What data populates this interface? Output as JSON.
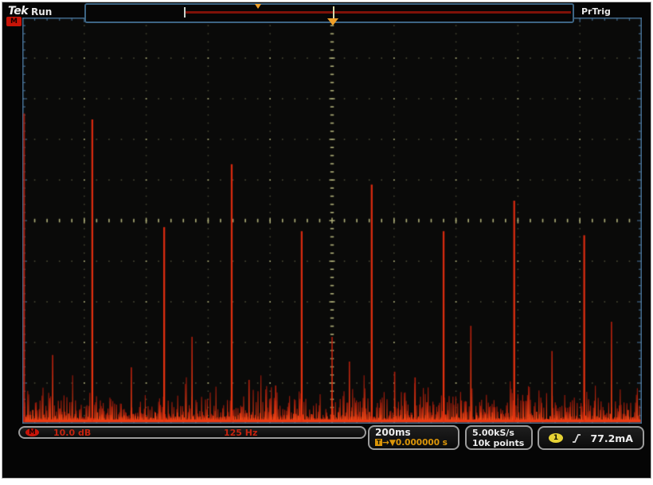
{
  "header": {
    "logo": "Tek",
    "acquisition_status": "Run",
    "trigger_status": "PrTrig"
  },
  "markers": {
    "math_reference_label": "M"
  },
  "icons": {
    "trigger_position": "down-triangle",
    "record_view_trigger": "down-triangle",
    "trigger_slope": "rising-edge",
    "horizontal_trigger_box": "T",
    "arrow_right": "→",
    "down_triangle": "▼"
  },
  "readouts": {
    "math": {
      "badge": "M",
      "vertical_scale": "10.0 dB",
      "horizontal_scale": "125 Hz"
    },
    "horizontal": {
      "scale": "200ms",
      "t_icon": "T",
      "position": "0.000000 s"
    },
    "acquisition": {
      "sample_rate": "5.00kS/s",
      "record_length": "10k points"
    },
    "trigger": {
      "source": "1",
      "level": "77.2mA"
    }
  },
  "chart_data": {
    "type": "line",
    "title": "FFT magnitude spectrum (Math channel)",
    "x_axis": {
      "units_per_div": "125 Hz",
      "divisions": 10
    },
    "y_axis": {
      "units_per_div": "10.0 dB",
      "divisions": 10
    },
    "grid": "dotted graticule with center crosshair minor ticks",
    "trigger_position_div": 5.0,
    "dc_peak": {
      "x_div": 0.03,
      "height_div": 7.6
    },
    "harmonic_peaks": [
      {
        "x_div": 1.13,
        "height_div": 7.45
      },
      {
        "x_div": 2.29,
        "height_div": 4.8
      },
      {
        "x_div": 3.38,
        "height_div": 6.35
      },
      {
        "x_div": 4.51,
        "height_div": 4.7
      },
      {
        "x_div": 5.64,
        "height_div": 5.85
      },
      {
        "x_div": 6.8,
        "height_div": 4.7
      },
      {
        "x_div": 7.94,
        "height_div": 5.45
      },
      {
        "x_div": 9.07,
        "height_div": 4.6
      }
    ],
    "secondary_spikes": [
      {
        "x_div": 0.49,
        "height_div": 1.65
      },
      {
        "x_div": 1.76,
        "height_div": 1.35
      },
      {
        "x_div": 2.74,
        "height_div": 2.1
      },
      {
        "x_div": 3.66,
        "height_div": 1.04
      },
      {
        "x_div": 4.09,
        "height_div": 0.9
      },
      {
        "x_div": 5.0,
        "height_div": 2.1
      },
      {
        "x_div": 5.28,
        "height_div": 1.49
      },
      {
        "x_div": 6.01,
        "height_div": 1.24
      },
      {
        "x_div": 6.34,
        "height_div": 1.1
      },
      {
        "x_div": 7.24,
        "height_div": 2.37
      },
      {
        "x_div": 8.55,
        "height_div": 1.75
      },
      {
        "x_div": 9.51,
        "height_div": 2.47
      }
    ],
    "noise_floor": {
      "seed": 20240613,
      "typical_height_div": 0.45,
      "max_height_div": 1.15
    },
    "colors": {
      "trace": "#d6290f",
      "trace_bright": "#ff5c20",
      "trace_dim": "#8c150a",
      "base_band": "#ee3a12",
      "graticule": "#80805a",
      "graticule_bright": "#a8a874",
      "frame": "#41688a",
      "background": "#0a0a09"
    }
  }
}
